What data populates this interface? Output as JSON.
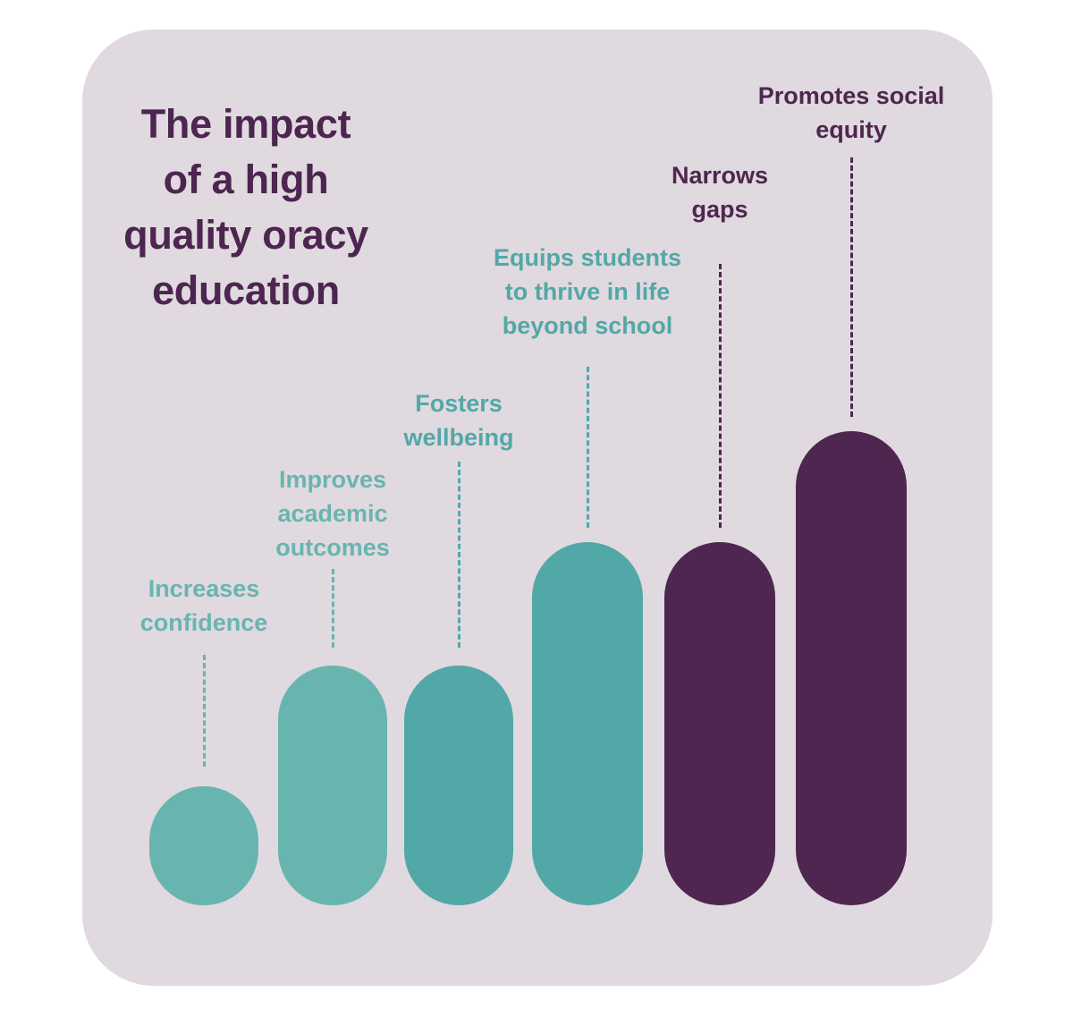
{
  "title_lines": [
    "The impact",
    "of a high",
    "quality oracy",
    "education"
  ],
  "colors": {
    "card": "#e0d9df",
    "title": "#4c2550"
  },
  "items": [
    {
      "label_lines": [
        "Increases",
        "confidence"
      ],
      "color": "#68b5b0",
      "level": 1
    },
    {
      "label_lines": [
        "Improves",
        "academic",
        "outcomes"
      ],
      "color": "#68b5b0",
      "level": 2
    },
    {
      "label_lines": [
        "Fosters",
        "wellbeing"
      ],
      "color": "#52a8a7",
      "level": 2
    },
    {
      "label_lines": [
        "Equips students",
        "to thrive in life",
        "beyond school"
      ],
      "color": "#52a8a7",
      "level": 3
    },
    {
      "label_lines": [
        "Narrows",
        "gaps"
      ],
      "color": "#4e264f",
      "level": 3
    },
    {
      "label_lines": [
        "Promotes social",
        "equity"
      ],
      "color": "#4e264f",
      "level": 4
    }
  ]
}
